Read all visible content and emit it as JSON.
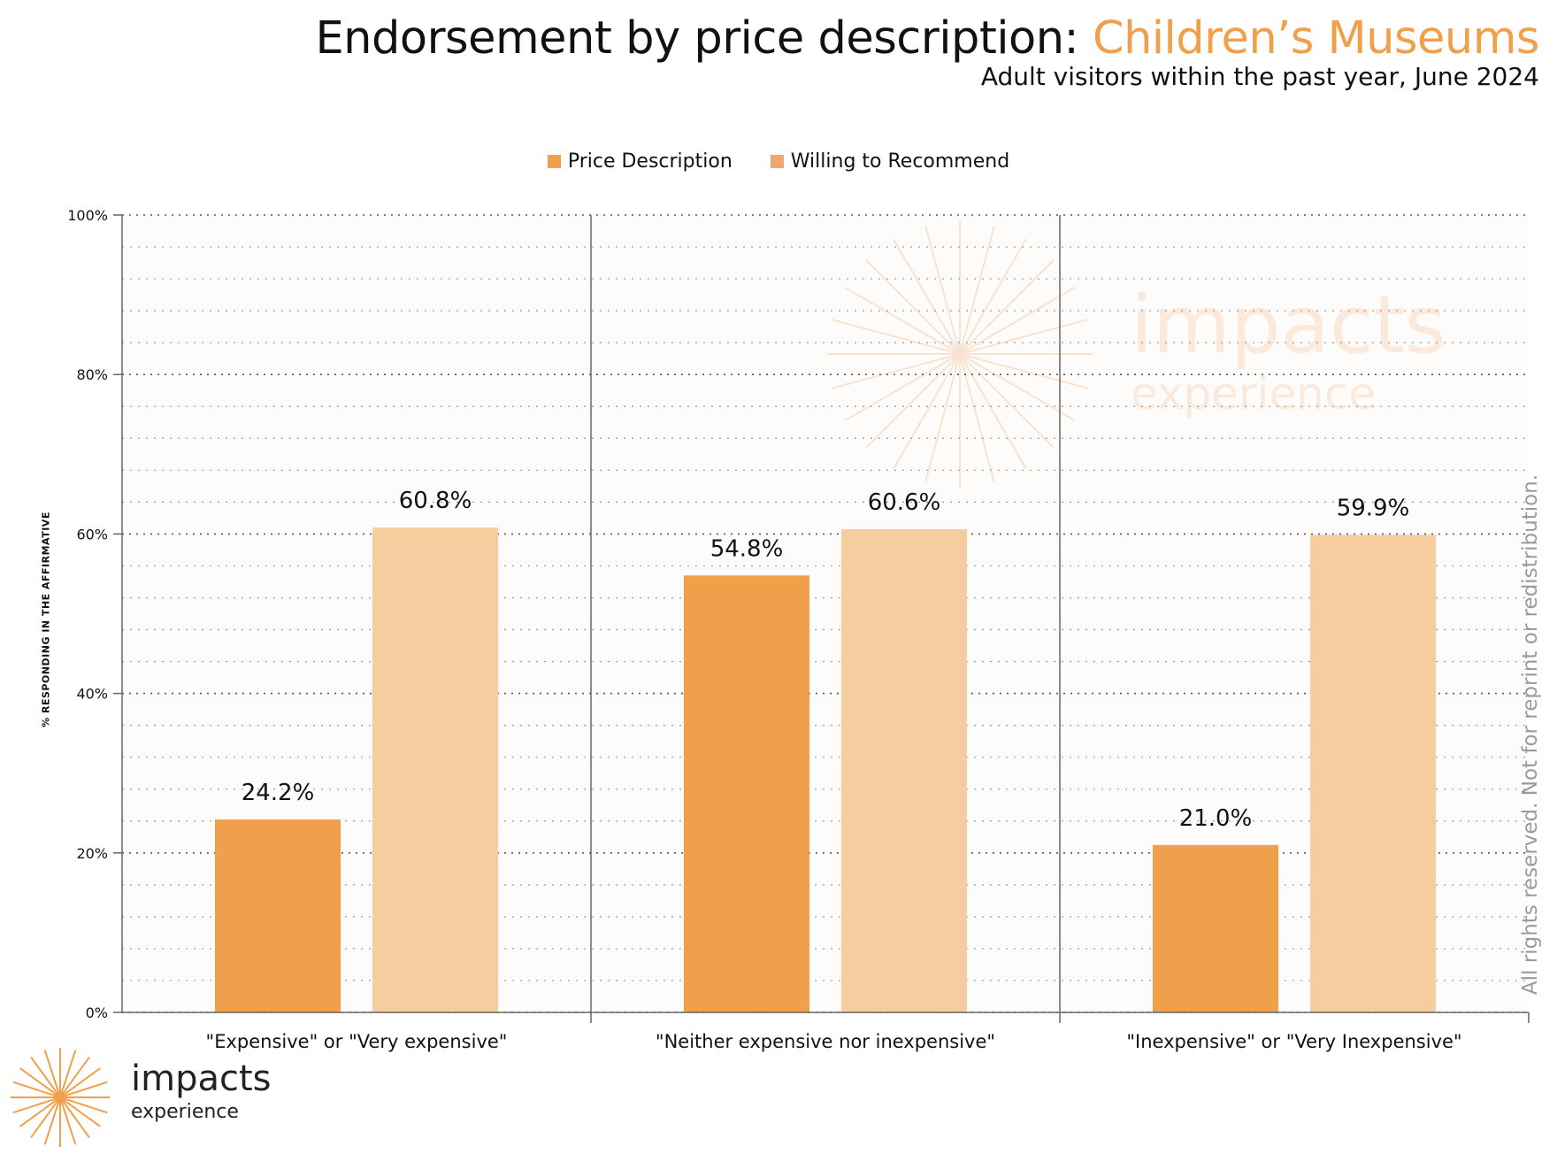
{
  "header": {
    "title_prefix": "Endorsement by price description: ",
    "title_accent": "Children’s Museums",
    "subtitle": "Adult visitors within the past year, June 2024"
  },
  "legend": {
    "price_description": "Price Description",
    "willing_to_recommend": "Willing to Recommend"
  },
  "y_axis_title": "% RESPONDING IN THE AFFIRMATIVE",
  "rights_notice": "All rights reserved. Not for reprint or redistribution.",
  "watermark": {
    "line1": "impacts",
    "line2": "experience"
  },
  "logo": {
    "line1": "impacts",
    "line2": "experience"
  },
  "colors": {
    "price": "#f0a04b",
    "recommend": "#f6cd9e",
    "accent": "#f0a04b",
    "background": "#fefcfa"
  },
  "chart_data": {
    "type": "bar",
    "categories": [
      "\"Expensive\" or \"Very expensive\"",
      "\"Neither expensive nor inexpensive\"",
      "\"Inexpensive\" or \"Very Inexpensive\""
    ],
    "series": [
      {
        "name": "Price Description",
        "values": [
          24.2,
          54.8,
          21.0
        ]
      },
      {
        "name": "Willing to Recommend",
        "values": [
          60.8,
          60.6,
          59.9
        ]
      }
    ],
    "value_labels": [
      [
        "24.2%",
        "54.8%",
        "21.0%"
      ],
      [
        "60.8%",
        "60.6%",
        "59.9%"
      ]
    ],
    "ylim": [
      0,
      100
    ],
    "yticks": [
      0,
      20,
      40,
      60,
      80,
      100
    ],
    "ytick_labels": [
      "0%",
      "20%",
      "40%",
      "60%",
      "80%",
      "100%"
    ],
    "ylabel": "% RESPONDING IN THE AFFIRMATIVE",
    "xlabel": "",
    "grid": true,
    "legend_position": "top-center"
  }
}
